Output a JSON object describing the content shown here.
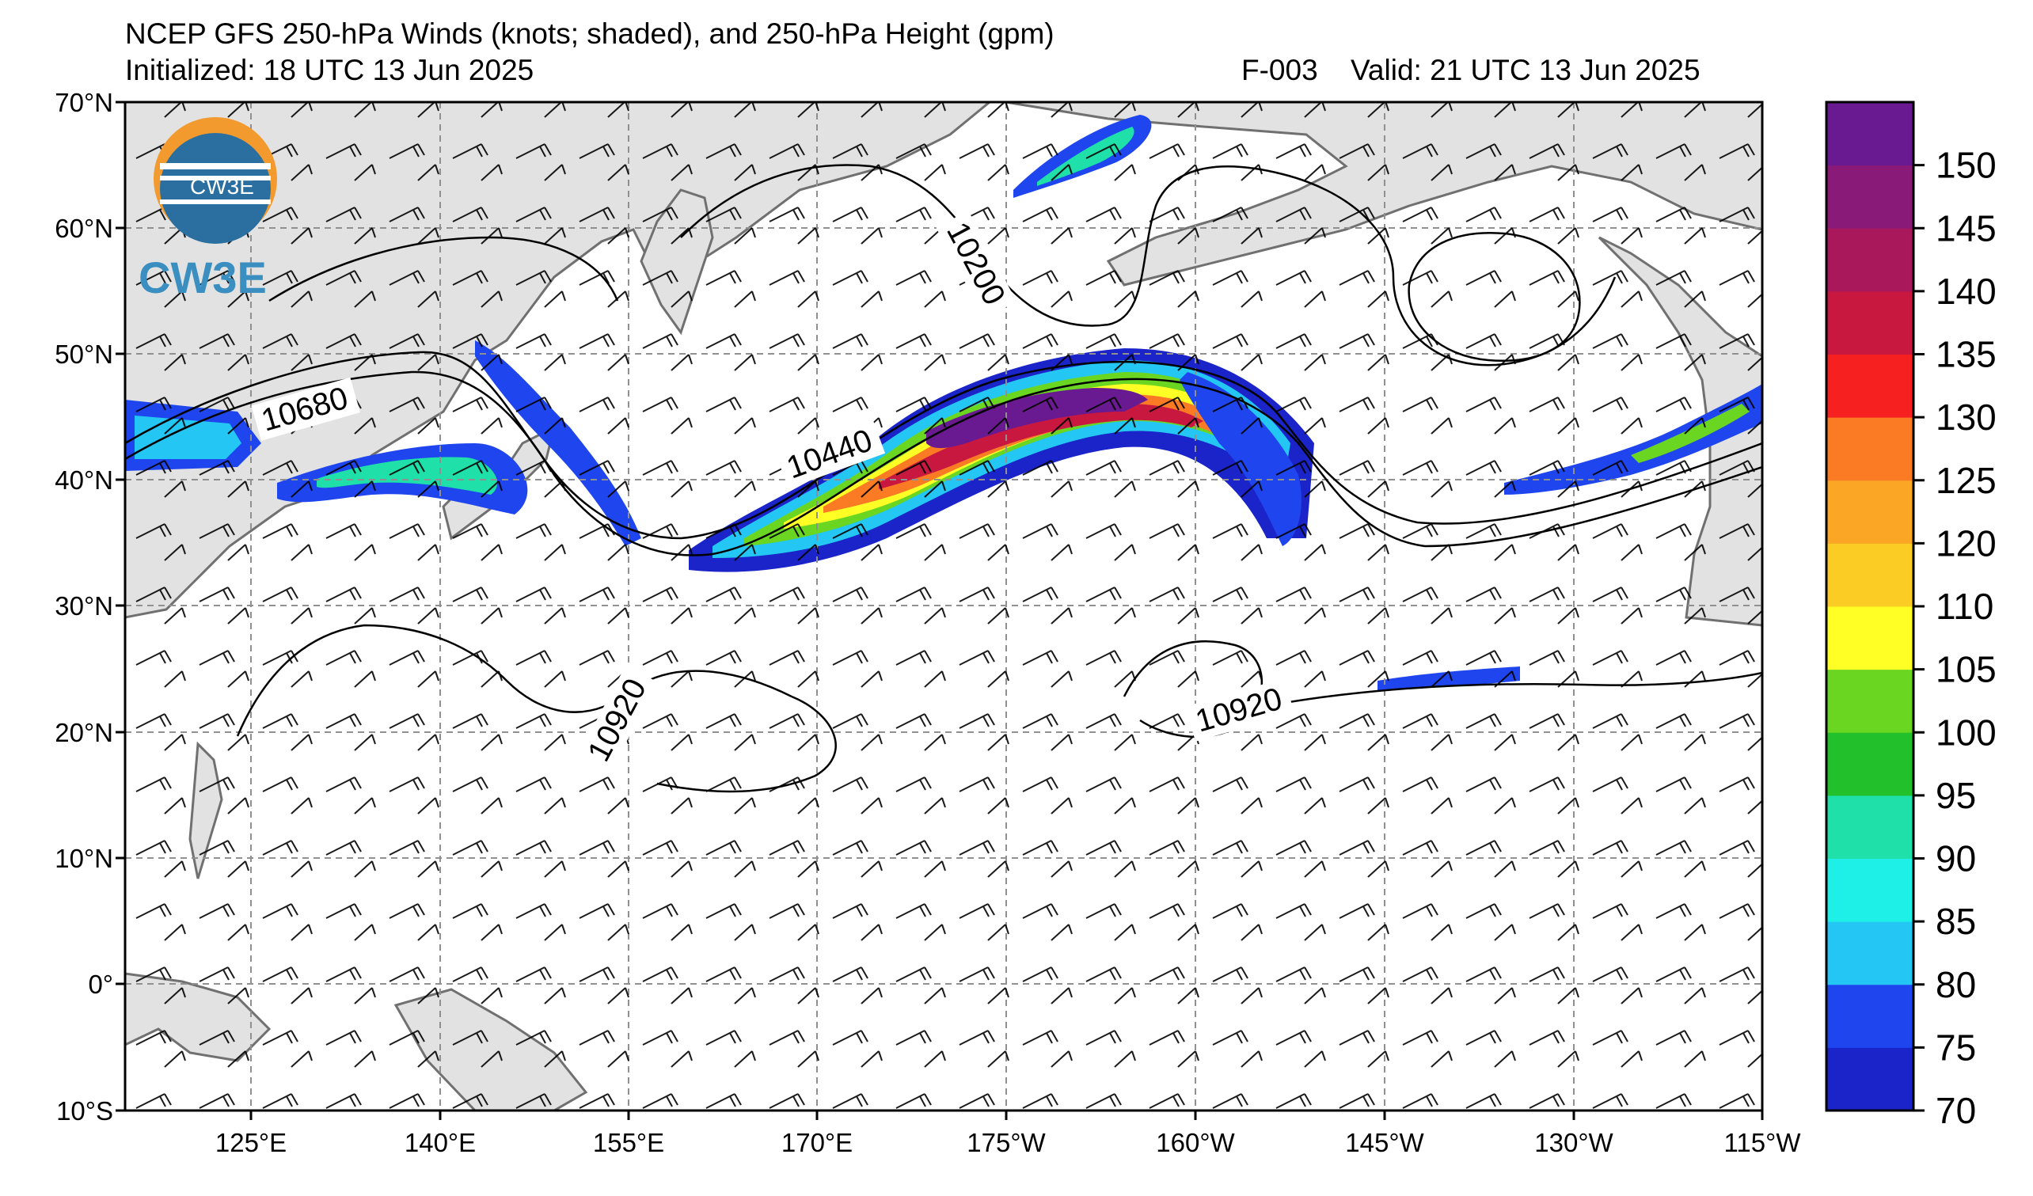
{
  "header": {
    "title": "NCEP GFS 250-hPa Winds (knots; shaded), and 250-hPa Height (gpm)",
    "initialized": "Initialized: 18 UTC 13 Jun 2025",
    "forecast_hour": "F-003",
    "valid": "Valid: 21 UTC 13 Jun 2025"
  },
  "logo": {
    "text": "CW3E",
    "inner_text": "CW3E"
  },
  "map": {
    "lat_labels": [
      "70°N",
      "60°N",
      "50°N",
      "40°N",
      "30°N",
      "20°N",
      "10°N",
      "0°",
      "10°S"
    ],
    "lon_labels": [
      "125°E",
      "140°E",
      "155°E",
      "170°E",
      "175°W",
      "160°W",
      "145°W",
      "130°W",
      "115°W"
    ],
    "contour_labels": [
      "10680",
      "10440",
      "10200",
      "10920",
      "10920"
    ],
    "colors": {
      "land": "#e2e2e2",
      "coast": "#707070",
      "grid": "#909090"
    }
  },
  "colorbar": {
    "labels": [
      "70",
      "75",
      "80",
      "85",
      "90",
      "95",
      "100",
      "105",
      "110",
      "120",
      "125",
      "130",
      "135",
      "140",
      "145",
      "150"
    ],
    "colors": [
      "#1a24c8",
      "#1f46ee",
      "#24c6f4",
      "#1ef0e8",
      "#1ee0a8",
      "#22c02a",
      "#6ad622",
      "#ffff26",
      "#fbcd24",
      "#fba624",
      "#fb7b24",
      "#f72020",
      "#c81840",
      "#a8185a",
      "#8a1a78",
      "#6a1a90"
    ]
  }
}
